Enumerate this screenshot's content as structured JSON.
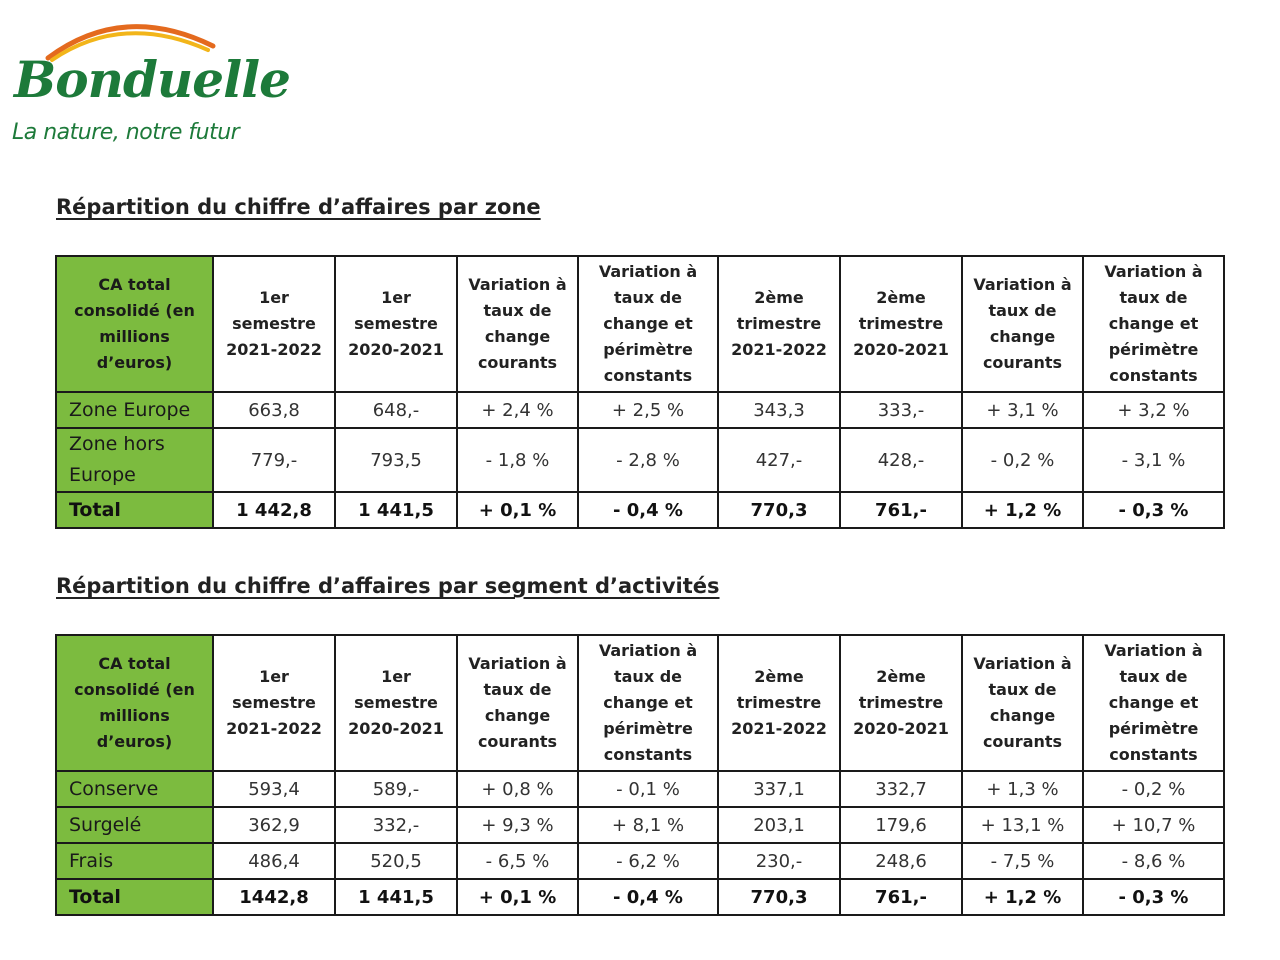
{
  "brand": {
    "name": "Bonduelle",
    "tagline": "La nature, notre futur",
    "colors": {
      "green": "#1d7a3a",
      "arc_yellow": "#f2b51a",
      "arc_orange": "#e46a1e",
      "table_green": "#7cbb3f"
    }
  },
  "zone": {
    "title": "Répartition du chiffre d’affaires par zone",
    "headers": [
      "CA total consolidé (en millions d’euros)",
      "1er semestre 2021-2022",
      "1er semestre 2020-2021",
      "Variation à taux de change courants",
      "Variation à taux de change et périmètre constants",
      "2ème trimestre 2021-2022",
      "2ème trimestre 2020-2021",
      "Variation à taux de change courants",
      "Variation à taux de change et périmètre constants"
    ],
    "rows": [
      {
        "label": "Zone Europe",
        "cells": [
          "663,8",
          "648,-",
          "+ 2,4 %",
          "+ 2,5 %",
          "343,3",
          "333,-",
          "+ 3,1 %",
          "+ 3,2 %"
        ]
      },
      {
        "label": "Zone hors Europe",
        "cells": [
          "779,-",
          "793,5",
          "- 1,8 %",
          "- 2,8 %",
          "427,-",
          "428,-",
          "- 0,2 %",
          "- 3,1 %"
        ]
      },
      {
        "label": "Total",
        "cells": [
          "1 442,8",
          "1 441,5",
          "+ 0,1 %",
          "- 0,4 %",
          "770,3",
          "761,-",
          "+ 1,2 %",
          "- 0,3 %"
        ]
      }
    ]
  },
  "segment": {
    "title": "Répartition du chiffre d’affaires par segment d’activités",
    "headers": [
      "CA total consolidé (en millions d’euros)",
      "1er semestre 2021-2022",
      "1er semestre 2020-2021",
      "Variation à taux de change courants",
      "Variation à taux de change et périmètre constants",
      "2ème trimestre 2021-2022",
      "2ème trimestre 2020-2021",
      "Variation à taux de change courants",
      "Variation à taux de change et périmètre constants"
    ],
    "rows": [
      {
        "label": "Conserve",
        "cells": [
          "593,4",
          "589,-",
          "+ 0,8 %",
          "- 0,1 %",
          "337,1",
          "332,7",
          "+ 1,3 %",
          "- 0,2 %"
        ]
      },
      {
        "label": "Surgelé",
        "cells": [
          "362,9",
          "332,-",
          "+ 9,3 %",
          "+ 8,1 %",
          "203,1",
          "179,6",
          "+ 13,1 %",
          "+ 10,7 %"
        ]
      },
      {
        "label": "Frais",
        "cells": [
          "486,4",
          "520,5",
          "- 6,5 %",
          "- 6,2 %",
          "230,-",
          "248,6",
          "- 7,5 %",
          "- 8,6 %"
        ]
      },
      {
        "label": "Total",
        "cells": [
          "1442,8",
          "1 441,5",
          "+ 0,1 %",
          "- 0,4 %",
          "770,3",
          "761,-",
          "+ 1,2 %",
          "- 0,3 %"
        ]
      }
    ]
  }
}
